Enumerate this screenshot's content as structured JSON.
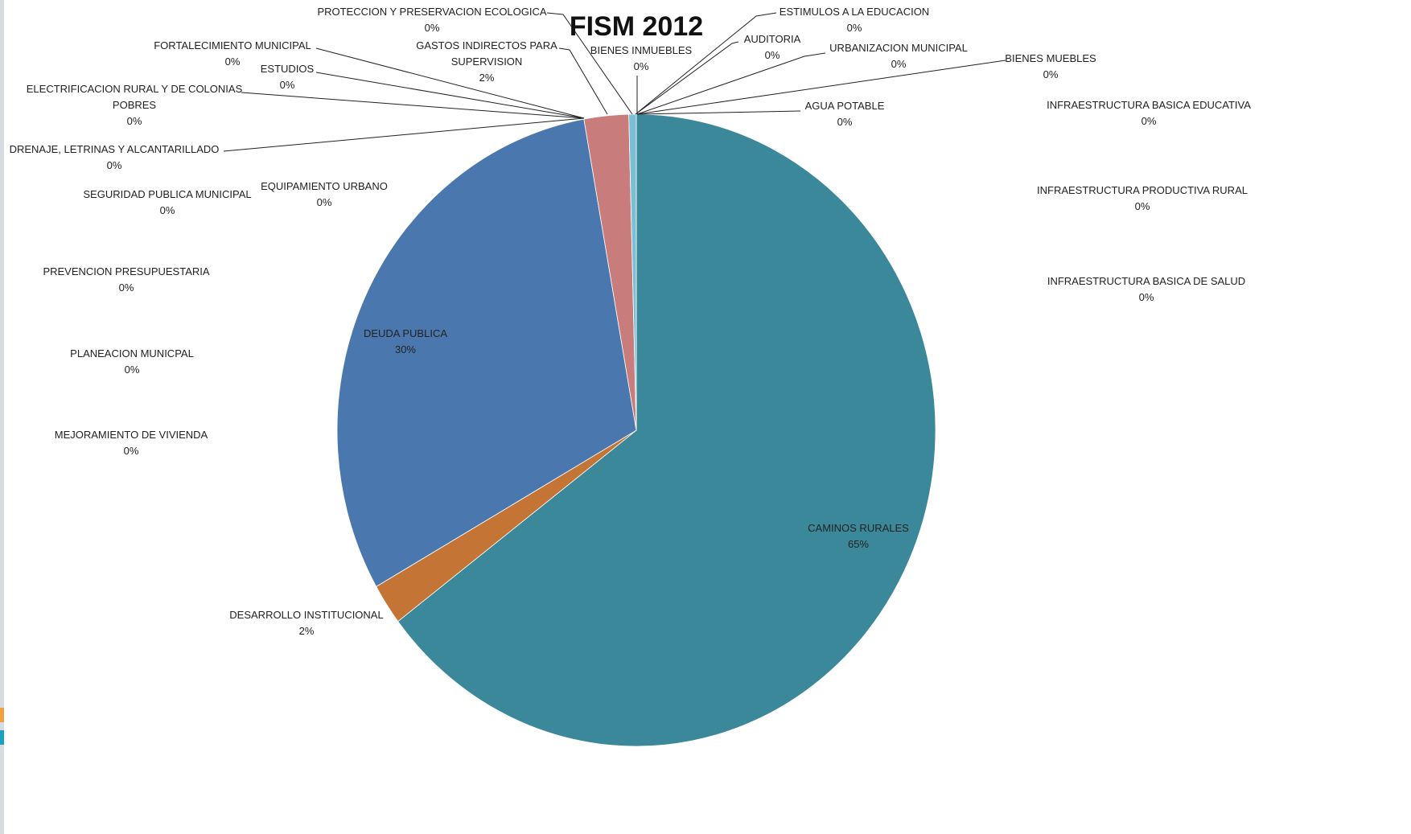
{
  "chart_data": {
    "type": "pie",
    "title": "FISM 2012",
    "categories": [
      "CAMINOS RURALES",
      "DESARROLLO INSTITUCIONAL",
      "DEUDA PUBLICA",
      "DRENAJE, LETRINAS Y ALCANTARILLADO",
      "ELECTRIFICACION RURAL Y DE COLONIAS POBRES",
      "ESTUDIOS",
      "FORTALECIMIENTO MUNICIPAL",
      "PROTECCION Y PRESERVACION ECOLOGICA",
      "GASTOS INDIRECTOS PARA SUPERVISION",
      "BIENES INMUEBLES",
      "ESTIMULOS A LA EDUCACION",
      "AUDITORIA",
      "URBANIZACION MUNICIPAL",
      "BIENES MUEBLES",
      "AGUA POTABLE",
      "INFRAESTRUCTURA BASICA EDUCATIVA",
      "INFRAESTRUCTURA PRODUCTIVA RURAL",
      "INFRAESTRUCTURA BASICA DE SALUD",
      "MEJORAMIENTO DE VIVIENDA",
      "PLANEACION MUNICPAL",
      "PREVENCION PRESUPUESTARIA",
      "SEGURIDAD PUBLICA MUNICIPAL",
      "EQUIPAMIENTO URBANO"
    ],
    "values": [
      64.6,
      2.1,
      30.4,
      0,
      0,
      0,
      0,
      0,
      2.4,
      0,
      0,
      0,
      0,
      0,
      0.4,
      0,
      0,
      0,
      0,
      0,
      0,
      0,
      0
    ],
    "value_labels": [
      "65%",
      "2%",
      "30%",
      "0%",
      "0%",
      "0%",
      "0%",
      "0%",
      "2%",
      "0%",
      "0%",
      "0%",
      "0%",
      "0%",
      "0%",
      "0%",
      "0%",
      "0%",
      "0%",
      "0%",
      "0%",
      "0%",
      "0%"
    ],
    "colors": [
      "#3a8899",
      "#c47535",
      "#4a78ae",
      "#8064a2",
      "#9bbb59",
      "#4bacc6",
      "#f79646",
      "#2c4d75",
      "#c97c7c",
      "#772c2a",
      "#5f7530",
      "#4d3b62",
      "#276a7c",
      "#b65708",
      "#7bbfd4",
      "#729aca",
      "#cf7b79",
      "#afc97a",
      "#9983b5",
      "#6fbdd1",
      "#f9ab6b",
      "#3a5f8f",
      "#8c3836"
    ]
  }
}
